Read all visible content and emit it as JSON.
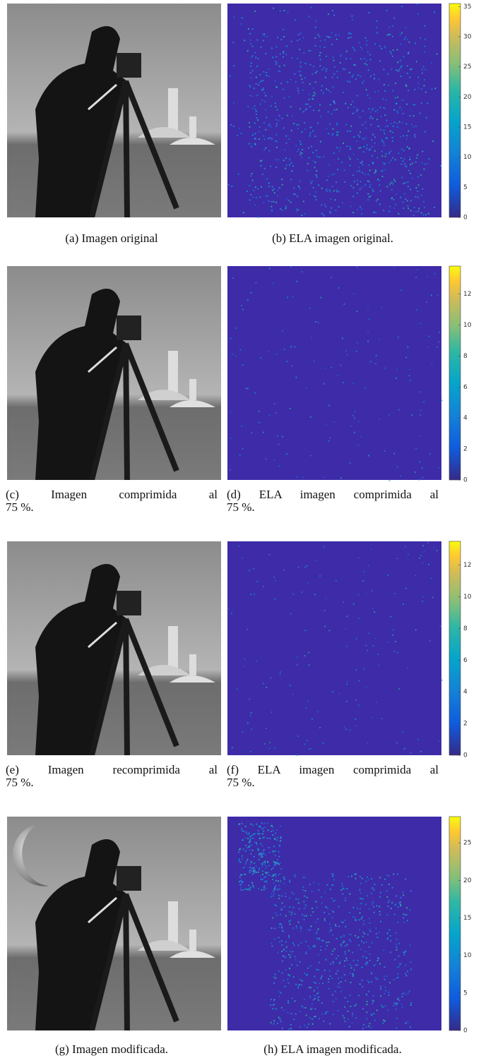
{
  "figure": {
    "rows": [
      {
        "left_caption": [
          "(a) Imagen original"
        ],
        "right_caption": [
          "(b) ELA imagen original."
        ],
        "colorbar": {
          "lim": [
            0,
            35.5
          ],
          "ticks": [
            0,
            5,
            10,
            15,
            20,
            25,
            30,
            35
          ]
        }
      },
      {
        "left_caption": [
          "(c) Imagen comprimida al",
          "75 %."
        ],
        "right_caption": [
          "(d) ELA imagen comprimida al",
          "75 %."
        ],
        "colorbar": {
          "lim": [
            0,
            13.8
          ],
          "ticks": [
            0,
            2,
            4,
            6,
            8,
            10,
            12
          ]
        }
      },
      {
        "left_caption": [
          "(e) Imagen recomprimida al",
          "75 %."
        ],
        "right_caption": [
          "(f) ELA imagen comprimida al",
          "75 %."
        ],
        "colorbar": {
          "lim": [
            0,
            13.5
          ],
          "ticks": [
            0,
            2,
            4,
            6,
            8,
            10,
            12
          ]
        }
      },
      {
        "left_caption": [
          "(g) Imagen modificada."
        ],
        "right_caption": [
          "(h) ELA imagen modificada."
        ],
        "colorbar": {
          "lim": [
            0,
            28.5
          ],
          "ticks": [
            0,
            5,
            10,
            15,
            20,
            25
          ]
        }
      }
    ]
  }
}
